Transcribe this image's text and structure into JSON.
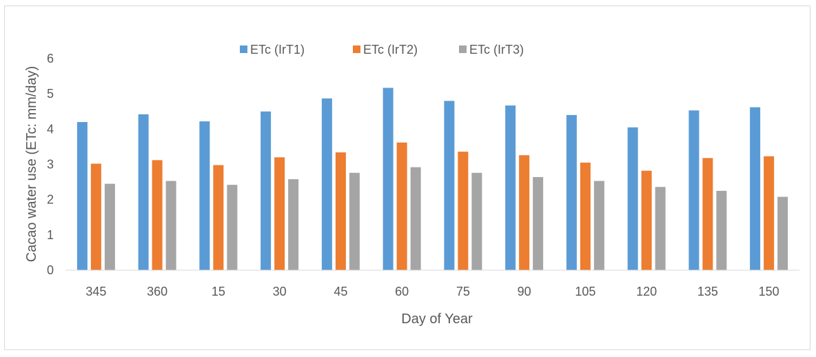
{
  "chart_data": {
    "type": "bar",
    "title": "",
    "xlabel": "Day of Year",
    "ylabel": "Cacao water use (ETc: mm/day)",
    "ylim": [
      0,
      6
    ],
    "yticks": [
      "0",
      "1",
      "2",
      "3",
      "4",
      "5",
      "6"
    ],
    "grid": false,
    "legend_position": "top",
    "categories": [
      "345",
      "360",
      "15",
      "30",
      "45",
      "60",
      "75",
      "90",
      "105",
      "120",
      "135",
      "150"
    ],
    "series": [
      {
        "name": "ETc (IrT1)",
        "color": "#5b9bd5",
        "values": [
          4.2,
          4.42,
          4.22,
          4.5,
          4.87,
          5.17,
          4.8,
          4.67,
          4.4,
          4.05,
          4.53,
          4.62
        ]
      },
      {
        "name": "ETc (IrT2)",
        "color": "#ed7d31",
        "values": [
          3.02,
          3.12,
          2.98,
          3.2,
          3.34,
          3.62,
          3.36,
          3.26,
          3.05,
          2.82,
          3.18,
          3.23
        ]
      },
      {
        "name": "ETc (IrT3)",
        "color": "#a5a5a5",
        "values": [
          2.45,
          2.53,
          2.42,
          2.58,
          2.76,
          2.92,
          2.76,
          2.64,
          2.53,
          2.36,
          2.25,
          2.08
        ]
      }
    ]
  }
}
